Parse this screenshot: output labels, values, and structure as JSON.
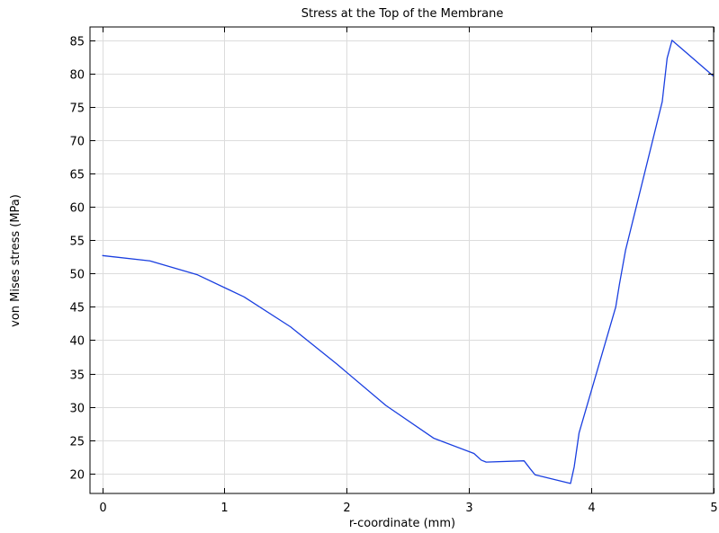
{
  "chart_data": {
    "type": "line",
    "title": "Stress at the Top of the Membrane",
    "xlabel": "r-coordinate (mm)",
    "ylabel": "von Mises stress (MPa)",
    "xlim": [
      -0.1,
      5.0
    ],
    "ylim": [
      17.0,
      87.0
    ],
    "xticks": [
      0,
      1,
      2,
      3,
      4,
      5
    ],
    "yticks": [
      20,
      25,
      30,
      35,
      40,
      45,
      50,
      55,
      60,
      65,
      70,
      75,
      80,
      85
    ],
    "xtick_labels": [
      "0",
      "1",
      "2",
      "3",
      "4",
      "5"
    ],
    "ytick_labels": [
      "20",
      "25",
      "30",
      "35",
      "40",
      "45",
      "50",
      "55",
      "60",
      "65",
      "70",
      "75",
      "80",
      "85"
    ],
    "grid": true,
    "series": [
      {
        "color": "#1a3fe0",
        "x": [
          0.0,
          0.39,
          0.78,
          1.16,
          1.54,
          1.92,
          2.32,
          2.71,
          3.04,
          3.1,
          3.14,
          3.45,
          3.5,
          3.54,
          3.83,
          3.86,
          3.9,
          4.2,
          4.23,
          4.28,
          4.58,
          4.62,
          4.66,
          5.0
        ],
        "y": [
          52.7,
          51.9,
          49.8,
          46.5,
          42.0,
          36.4,
          30.2,
          25.3,
          23.0,
          22.0,
          21.7,
          21.9,
          20.7,
          19.8,
          18.5,
          21.0,
          26.1,
          45.0,
          48.4,
          53.5,
          75.8,
          82.3,
          85.0,
          79.6
        ]
      }
    ]
  }
}
